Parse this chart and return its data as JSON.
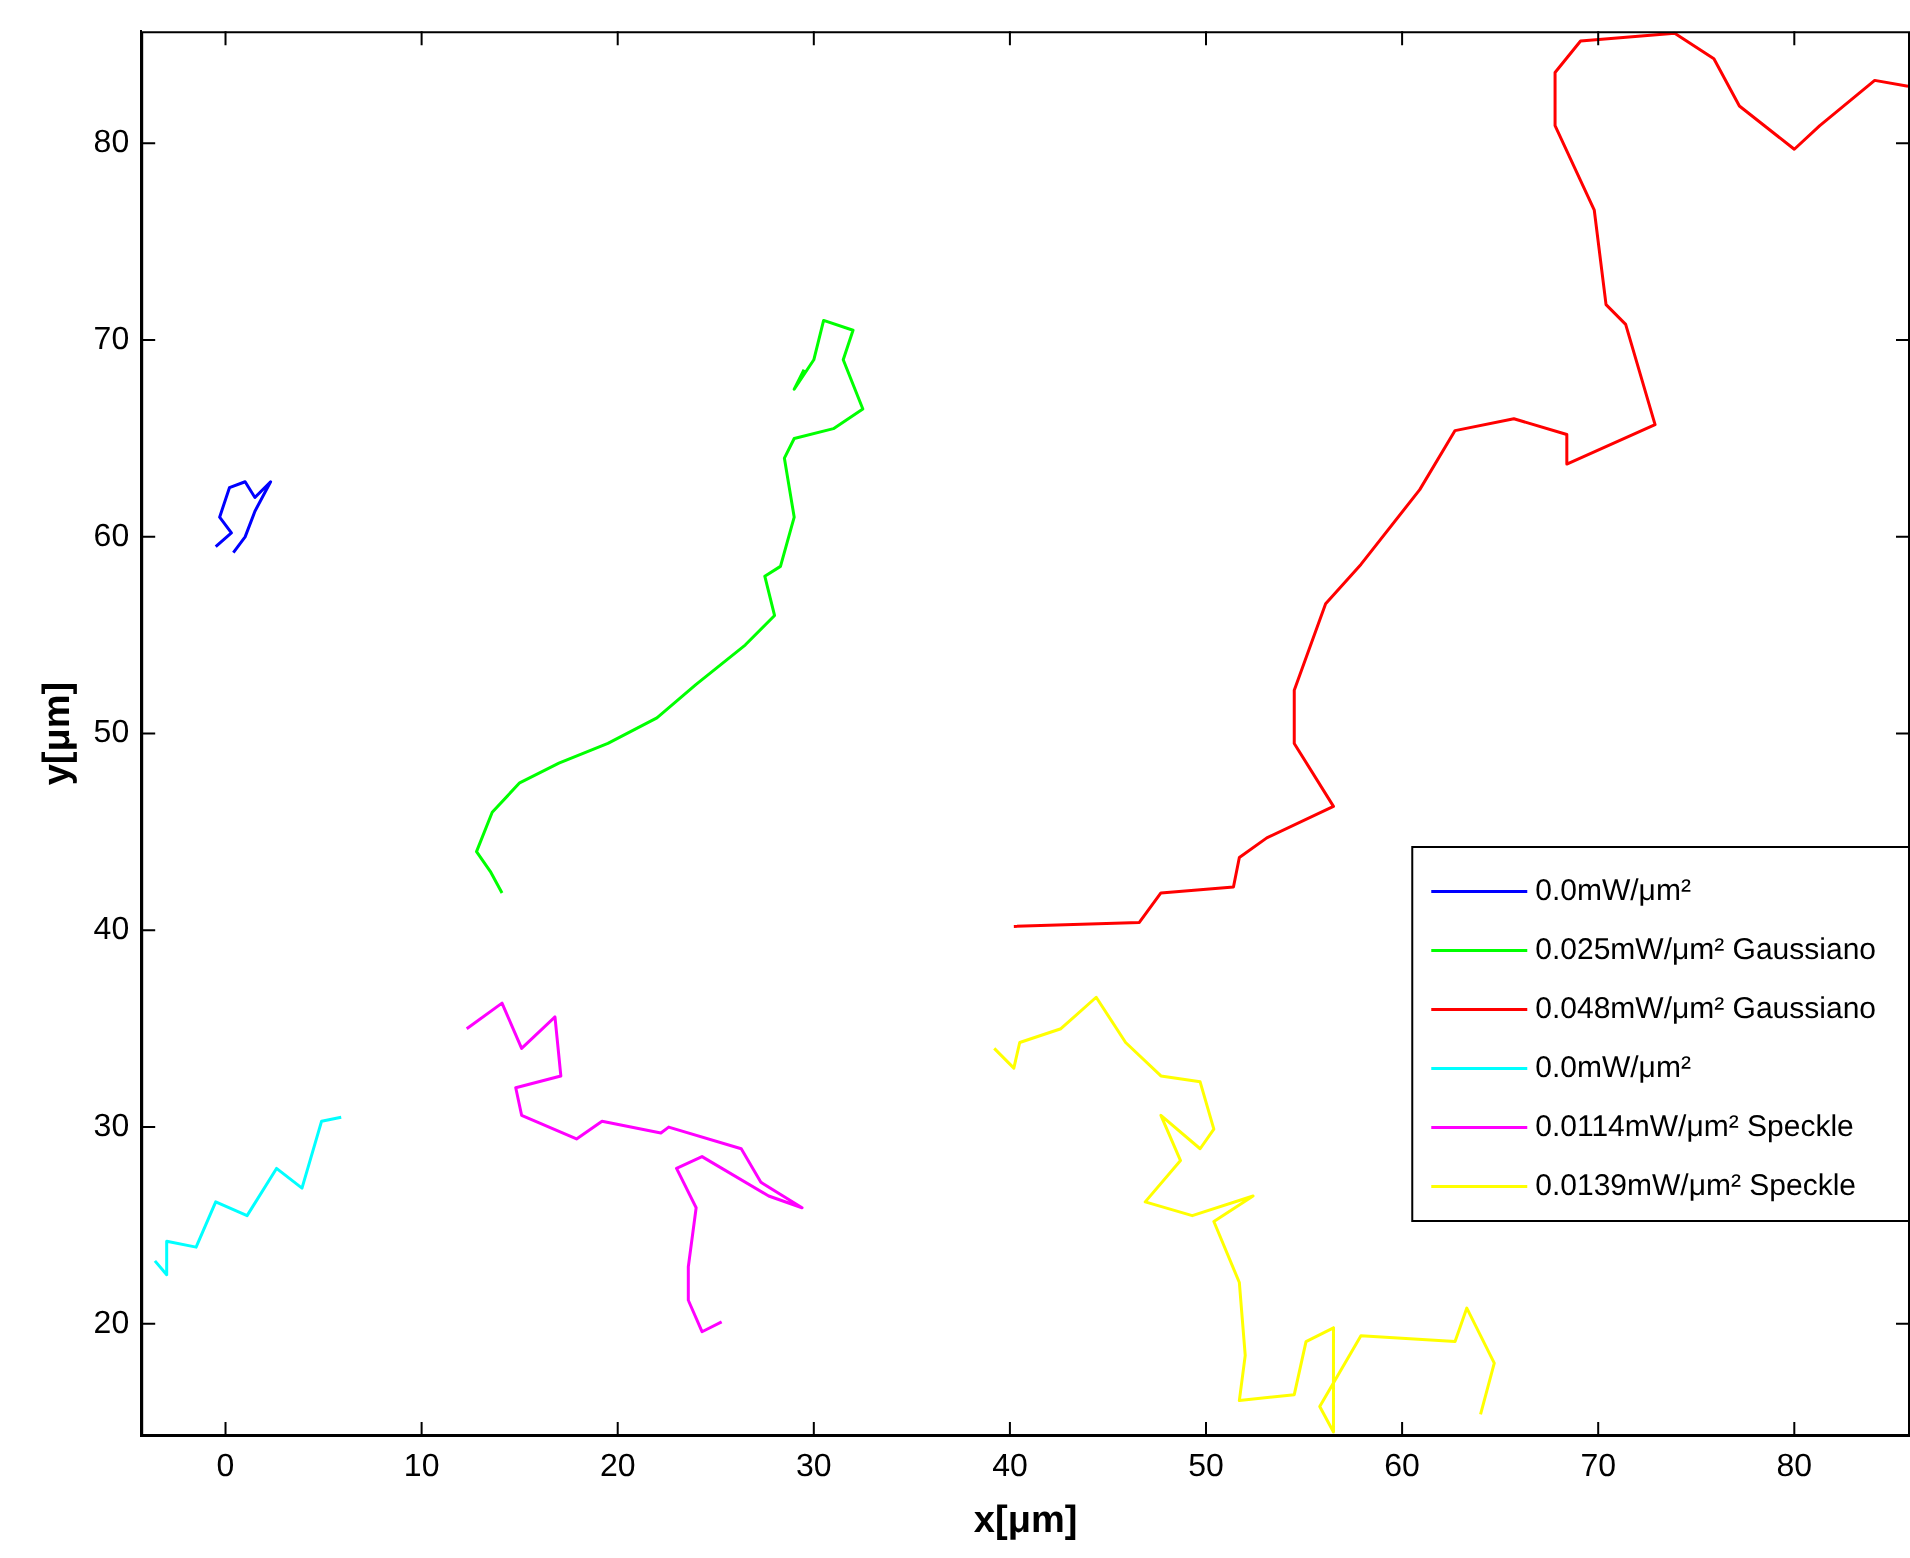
{
  "chart_data": {
    "type": "line",
    "xlabel": "x[μm]",
    "ylabel": "y[μm]",
    "xlim": [
      -4.3,
      85.9
    ],
    "ylim": [
      14.3,
      85.7
    ],
    "xticks": [
      0,
      10,
      20,
      30,
      40,
      50,
      60,
      70,
      80
    ],
    "yticks": [
      20,
      30,
      40,
      50,
      60,
      70,
      80
    ],
    "grid": false,
    "legend": "right",
    "marker": "none",
    "line_style": "solid",
    "series": [
      {
        "name": "0.0mW/μm²",
        "color": "#0000ff",
        "x": [
          -0.5,
          0.3,
          -0.3,
          0.2,
          1,
          1.5,
          2.3,
          1.5,
          1,
          0.4
        ],
        "values": [
          59.5,
          60.2,
          61,
          62.5,
          62.8,
          62,
          62.8,
          61.3,
          60,
          59.2
        ]
      },
      {
        "name": "0.025mW/μm² Gaussiano",
        "color": "#00ff00",
        "x": [
          14.1,
          13.5,
          12.8,
          13.6,
          15,
          17,
          19.5,
          22,
          24,
          26.5,
          28,
          27.5,
          28.3,
          29,
          28.5,
          29,
          31,
          32.5,
          31.5,
          32,
          30.5,
          30,
          29,
          29.5
        ],
        "values": [
          41.9,
          43,
          44,
          46,
          47.5,
          48.5,
          49.5,
          50.8,
          52.5,
          54.5,
          56,
          58,
          58.5,
          61,
          64,
          65,
          65.5,
          66.5,
          69,
          70.5,
          71,
          69,
          67.5,
          68.5
        ]
      },
      {
        "name": "0.048mW/μm² Gaussiano",
        "color": "#ff0000",
        "x": [
          40.2,
          46.6,
          47.7,
          51.4,
          51.7,
          53.1,
          56.5,
          54.5,
          54.5,
          56.1,
          57.9,
          60.9,
          62.7,
          65.7,
          68.4,
          68.4,
          72.9,
          71.4,
          70.4,
          69.8,
          67.8,
          67.8,
          69.1,
          73.9,
          75.9,
          77.2,
          80,
          81.3,
          84.1,
          85.8
        ],
        "values": [
          40.2,
          40.4,
          41.9,
          42.2,
          43.7,
          44.7,
          46.3,
          49.5,
          52.2,
          56.6,
          58.6,
          62.4,
          65.4,
          66,
          65.2,
          63.7,
          65.7,
          70.8,
          71.8,
          76.6,
          80.9,
          83.6,
          85.2,
          85.6,
          84.3,
          81.9,
          79.7,
          80.9,
          83.2,
          82.9
        ]
      },
      {
        "name": "0.0mW/μm²",
        "color": "#00ffff",
        "x": [
          -3.6,
          -3,
          -3,
          -1.5,
          -0.5,
          1.1,
          2.6,
          3.9,
          4.9,
          5.9
        ],
        "values": [
          23.2,
          22.5,
          24.2,
          23.9,
          26.2,
          25.5,
          27.9,
          26.9,
          30.3,
          30.5
        ]
      },
      {
        "name": "0.0114mW/μm² Speckle",
        "color": "#ff00ff",
        "x": [
          12.3,
          14.1,
          15.1,
          16.8,
          17.1,
          14.8,
          15.1,
          17.9,
          19.2,
          22.2,
          22.6,
          26.3,
          27.3,
          29.4,
          27.7,
          24.3,
          23,
          24,
          23.6,
          23.6,
          24.3,
          25.3
        ],
        "values": [
          35,
          36.3,
          34,
          35.6,
          32.6,
          32,
          30.6,
          29.4,
          30.3,
          29.7,
          30,
          28.9,
          27.2,
          25.9,
          26.5,
          28.5,
          27.9,
          25.9,
          22.9,
          21.2,
          19.6,
          20.1
        ]
      },
      {
        "name": "0.0139mW/μm² Speckle",
        "color": "#ffff00",
        "x": [
          39.2,
          40.2,
          40.5,
          42.6,
          44.4,
          45.9,
          47.7,
          49.7,
          50.4,
          49.7,
          47.7,
          48.7,
          46.9,
          49.3,
          52.4,
          50.4,
          51.7,
          52,
          51.7,
          54.5,
          55.1,
          56.5,
          56.5,
          55.8,
          57.9,
          62.7,
          63.3,
          64.7,
          64
        ],
        "values": [
          34,
          33,
          34.3,
          35,
          36.6,
          34.3,
          32.6,
          32.3,
          29.9,
          28.9,
          30.6,
          28.3,
          26.2,
          25.5,
          26.5,
          25.2,
          22.1,
          18.4,
          16.1,
          16.4,
          19.1,
          19.8,
          14.5,
          15.8,
          19.4,
          19.1,
          20.8,
          18,
          15.4
        ]
      }
    ]
  }
}
